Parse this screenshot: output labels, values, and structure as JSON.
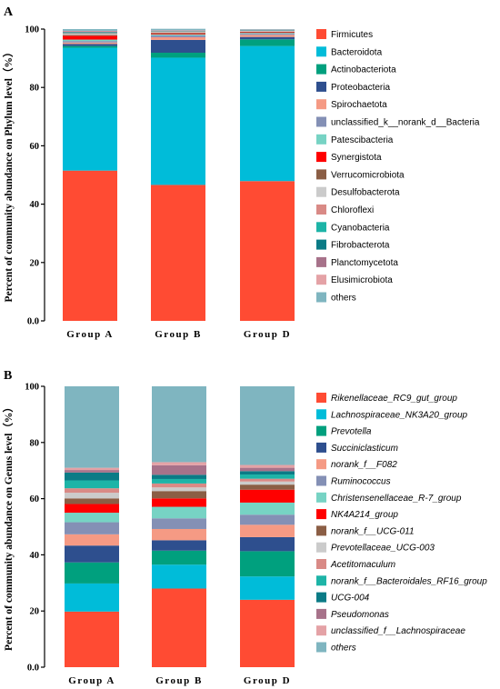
{
  "chart_data": [
    {
      "type": "bar",
      "stacked": true,
      "panel": "A",
      "ylabel": "Percent of community abundance on Phylum level（%）",
      "ylim": [
        0,
        100
      ],
      "yticks": [
        "0.0",
        "20",
        "40",
        "60",
        "80",
        "100"
      ],
      "categories": [
        "Group A",
        "Group B",
        "Group D"
      ],
      "legend_italic": false,
      "series": [
        {
          "name": "Firmicutes",
          "color": "#FF4B33",
          "values": [
            51.5,
            46.6,
            47.9
          ]
        },
        {
          "name": "Bacteroidota",
          "color": "#00BCD9",
          "values": [
            42.1,
            43.6,
            46.3
          ]
        },
        {
          "name": "Actinobacteriota",
          "color": "#00A07E",
          "values": [
            0.6,
            1.7,
            2.3
          ]
        },
        {
          "name": "Proteobacteria",
          "color": "#2E4F8E",
          "values": [
            0.7,
            4.4,
            0.8
          ]
        },
        {
          "name": "Spirochaetota",
          "color": "#F59A84",
          "values": [
            0.5,
            0.9,
            0.7
          ]
        },
        {
          "name": "unclassified_k__norank_d__Bacteria",
          "color": "#8490B5",
          "values": [
            0.5,
            0.6,
            0.4
          ]
        },
        {
          "name": "Patescibacteria",
          "color": "#77D3C4",
          "values": [
            0.5,
            0.4,
            0.3
          ]
        },
        {
          "name": "Synergistota",
          "color": "#FF0000",
          "values": [
            1.3,
            0.3,
            0.2
          ]
        },
        {
          "name": "Verrucomicrobiota",
          "color": "#8B5E45",
          "values": [
            0.3,
            0.3,
            0.2
          ]
        },
        {
          "name": "Desulfobacterota",
          "color": "#CBCBCB",
          "values": [
            0.4,
            0.2,
            0.2
          ]
        },
        {
          "name": "Chloroflexi",
          "color": "#D98A86",
          "values": [
            0.2,
            0.2,
            0.1
          ]
        },
        {
          "name": "Cyanobacteria",
          "color": "#1DB4A7",
          "values": [
            0.2,
            0.1,
            0.1
          ]
        },
        {
          "name": "Fibrobacterota",
          "color": "#0B7B86",
          "values": [
            0.2,
            0.1,
            0.1
          ]
        },
        {
          "name": "Planctomycetota",
          "color": "#A7728A",
          "values": [
            0.2,
            0.1,
            0.1
          ]
        },
        {
          "name": "Elusimicrobiota",
          "color": "#E4A2A6",
          "values": [
            0.2,
            0.1,
            0.1
          ]
        },
        {
          "name": "others",
          "color": "#7FB5C0",
          "values": [
            0.6,
            0.5,
            0.2
          ]
        }
      ]
    },
    {
      "type": "bar",
      "stacked": true,
      "panel": "B",
      "ylabel": "Percent of community abundance on Genus level（%）",
      "ylim": [
        0,
        100
      ],
      "yticks": [
        "0.0",
        "20",
        "40",
        "60",
        "80",
        "100"
      ],
      "categories": [
        "Group A",
        "Group B",
        "Group D"
      ],
      "legend_italic": true,
      "series": [
        {
          "name": "Rikenellaceae_RC9_gut_group",
          "color": "#FF4B33",
          "values": [
            19.8,
            28.0,
            24.0
          ]
        },
        {
          "name": "Lachnospiraceae_NK3A20_group",
          "color": "#00BCD9",
          "values": [
            10.0,
            8.5,
            8.3
          ]
        },
        {
          "name": "Prevotella",
          "color": "#00A07E",
          "values": [
            7.5,
            5.0,
            9.0
          ]
        },
        {
          "name": "Succiniclasticum",
          "color": "#2E4F8E",
          "values": [
            6.0,
            3.7,
            5.0
          ]
        },
        {
          "name": "norank_f__F082",
          "color": "#F59A84",
          "values": [
            4.0,
            4.0,
            4.4
          ]
        },
        {
          "name": "Ruminococcus",
          "color": "#8490B5",
          "values": [
            4.3,
            3.8,
            3.6
          ]
        },
        {
          "name": "Christensenellaceae_R-7_group",
          "color": "#77D3C4",
          "values": [
            3.4,
            4.1,
            4.3
          ]
        },
        {
          "name": "NK4A214_group",
          "color": "#FF0000",
          "values": [
            3.1,
            3.0,
            4.6
          ]
        },
        {
          "name": "norank_f__UCG-011",
          "color": "#8B5E45",
          "values": [
            2.0,
            2.6,
            1.8
          ]
        },
        {
          "name": "Prevotellaceae_UCG-003",
          "color": "#CBCBCB",
          "values": [
            2.0,
            1.3,
            1.1
          ]
        },
        {
          "name": "Acetitomaculum",
          "color": "#D98A86",
          "values": [
            1.6,
            1.4,
            1.0
          ]
        },
        {
          "name": "norank_f__Bacteroidales_RF16_group",
          "color": "#1DB4A7",
          "values": [
            2.8,
            1.6,
            1.5
          ]
        },
        {
          "name": "UCG-004",
          "color": "#0B7B86",
          "values": [
            2.8,
            1.5,
            1.2
          ]
        },
        {
          "name": "Pseudomonas",
          "color": "#A7728A",
          "values": [
            0.9,
            3.4,
            1.2
          ]
        },
        {
          "name": "unclassified_f__Lachnospiraceae",
          "color": "#E4A2A6",
          "values": [
            0.8,
            1.1,
            1.0
          ]
        },
        {
          "name": "others",
          "color": "#7FB5C0",
          "values": [
            29.0,
            27.0,
            28.0
          ]
        }
      ]
    }
  ]
}
